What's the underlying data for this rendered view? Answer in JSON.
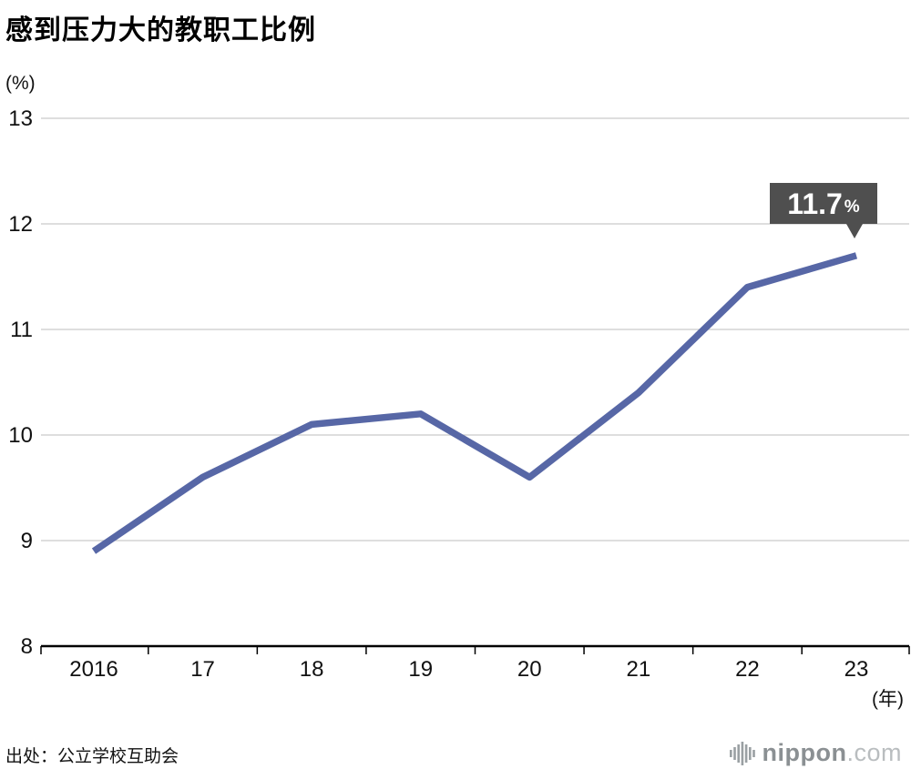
{
  "title": "感到压力大的教职工比例",
  "source": "出处：公立学校互助会",
  "logo": {
    "brand": "nippon",
    "tld": ".com",
    "icon": "soundwave-bars-icon"
  },
  "chart_data": {
    "type": "line",
    "title": "感到压力大的教职工比例",
    "categories": [
      "2016",
      "17",
      "18",
      "19",
      "20",
      "21",
      "22",
      "23"
    ],
    "values": [
      8.9,
      9.6,
      10.1,
      10.2,
      9.6,
      10.4,
      11.4,
      11.7
    ],
    "yticks": [
      8,
      9,
      10,
      11,
      12,
      13
    ],
    "ylim": [
      8,
      13
    ],
    "ylabel": "(%)",
    "xlabel": "(年)",
    "grid": true,
    "legend": "none",
    "line_color": "#5767a6",
    "grid_color": "#c9c9c9",
    "axis_color": "#000000",
    "annotation": {
      "text": "11.7",
      "unit": "%",
      "bg": "#4f4f4f",
      "color": "#ffffff"
    }
  }
}
